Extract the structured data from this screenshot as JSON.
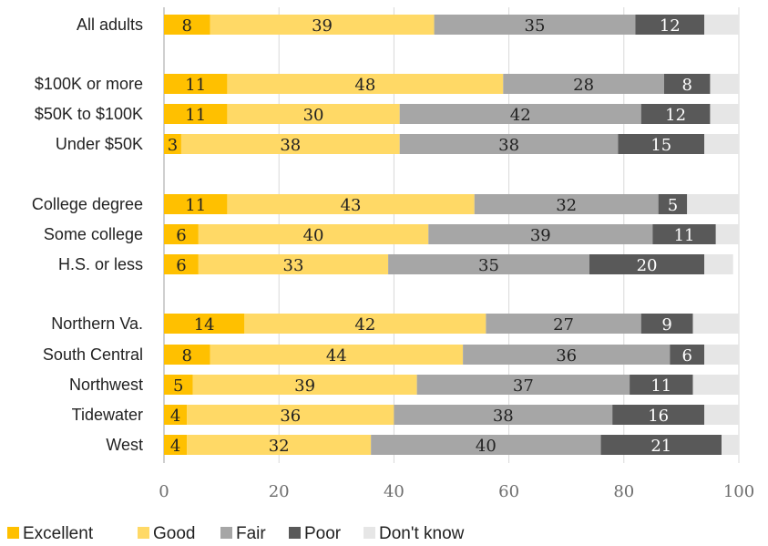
{
  "chart_data": {
    "type": "bar",
    "orientation": "horizontal",
    "stacked": true,
    "categories": [
      "All adults",
      "$100K or more",
      "$50K to $100K",
      "Under $50K",
      "College degree",
      "Some college",
      "H.S. or less",
      "Northern Va.",
      "South Central",
      "Northwest",
      "Tidewater",
      "West"
    ],
    "series": [
      {
        "name": "Excellent",
        "color": "#FFC000",
        "label_color": "#222222",
        "values": [
          8,
          11,
          11,
          3,
          11,
          6,
          6,
          14,
          8,
          5,
          4,
          4
        ]
      },
      {
        "name": "Good",
        "color": "#FFD966",
        "label_color": "#222222",
        "values": [
          39,
          48,
          30,
          38,
          43,
          40,
          33,
          42,
          44,
          39,
          36,
          32
        ]
      },
      {
        "name": "Fair",
        "color": "#A6A6A6",
        "label_color": "#222222",
        "values": [
          35,
          28,
          42,
          38,
          32,
          39,
          35,
          27,
          36,
          37,
          38,
          40
        ]
      },
      {
        "name": "Poor",
        "color": "#595959",
        "label_color": "#ffffff",
        "values": [
          12,
          8,
          12,
          15,
          5,
          11,
          20,
          9,
          6,
          11,
          16,
          21
        ]
      },
      {
        "name": "Don't know",
        "color": "#E6E6E6",
        "label_color": "#222222",
        "values": [
          6,
          5,
          5,
          6,
          9,
          4,
          5,
          8,
          6,
          8,
          6,
          3
        ]
      }
    ],
    "xlim": [
      0,
      100
    ],
    "xticks": [
      0,
      20,
      40,
      60,
      80,
      100
    ],
    "grid": true,
    "legend_position": "bottom-left",
    "show_value_labels_for": [
      "Excellent",
      "Good",
      "Fair",
      "Poor"
    ]
  }
}
